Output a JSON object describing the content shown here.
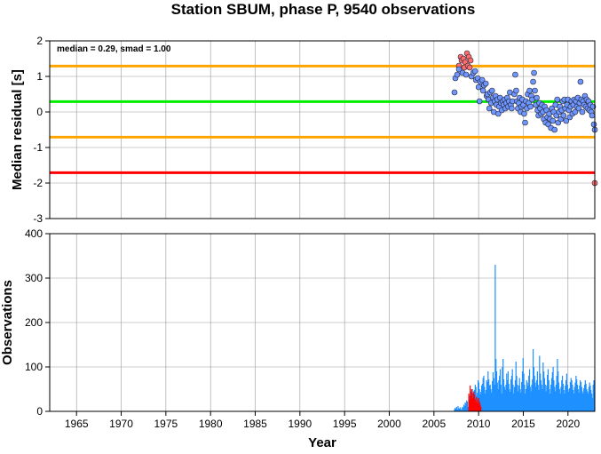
{
  "chart_data": [
    {
      "type": "scatter",
      "title": "Station SBUM, phase P, 9540 observations",
      "ylabel": "Median residual [s]",
      "annotation": "median = 0.29, smad = 1.00",
      "xlim": [
        1962,
        2023
      ],
      "ylim": [
        -3,
        2
      ],
      "yticks": [
        2,
        1,
        0,
        -1,
        -2,
        -3
      ],
      "grid": true,
      "reference_lines": [
        {
          "y": 1.29,
          "color": "#ffa500"
        },
        {
          "y": 0.29,
          "color": "#00ee00"
        },
        {
          "y": -0.71,
          "color": "#ffa500"
        },
        {
          "y": -1.71,
          "color": "#ff0000"
        }
      ],
      "series": [
        {
          "color": "#ff6e6e",
          "points": [
            [
              2007.8,
              1.3
            ],
            [
              2008.0,
              1.55
            ],
            [
              2008.1,
              1.45
            ],
            [
              2008.3,
              1.5
            ],
            [
              2008.5,
              1.4
            ],
            [
              2008.7,
              1.65
            ],
            [
              2008.9,
              1.55
            ],
            [
              2008.4,
              1.25
            ],
            [
              2008.8,
              1.3
            ],
            [
              2009.1,
              1.45
            ],
            [
              2009.0,
              1.25
            ],
            [
              2023.0,
              -2.0
            ]
          ]
        },
        {
          "color": "#6e96ff",
          "points": [
            [
              2007.3,
              0.55
            ],
            [
              2007.4,
              0.95
            ],
            [
              2007.6,
              1.05
            ],
            [
              2007.8,
              1.2
            ],
            [
              2008.2,
              1.1
            ],
            [
              2008.6,
              1.05
            ],
            [
              2009.2,
              1.0
            ],
            [
              2009.4,
              1.1
            ],
            [
              2009.6,
              1.15
            ],
            [
              2009.7,
              0.9
            ],
            [
              2009.9,
              0.95
            ],
            [
              2010.0,
              0.7
            ],
            [
              2010.1,
              0.3
            ],
            [
              2010.2,
              0.85
            ],
            [
              2010.4,
              0.9
            ],
            [
              2010.5,
              0.6
            ],
            [
              2010.6,
              0.75
            ],
            [
              2010.8,
              0.8
            ],
            [
              2010.9,
              0.45
            ],
            [
              2011.0,
              0.5
            ],
            [
              2011.1,
              0.35
            ],
            [
              2011.2,
              0.1
            ],
            [
              2011.3,
              0.55
            ],
            [
              2011.4,
              0.25
            ],
            [
              2011.5,
              0.6
            ],
            [
              2011.6,
              0.4
            ],
            [
              2011.7,
              0.0
            ],
            [
              2011.8,
              0.3
            ],
            [
              2011.9,
              0.45
            ],
            [
              2012.0,
              0.2
            ],
            [
              2012.1,
              0.35
            ],
            [
              2012.2,
              -0.05
            ],
            [
              2012.3,
              0.15
            ],
            [
              2012.4,
              0.4
            ],
            [
              2012.5,
              0.25
            ],
            [
              2012.6,
              0.05
            ],
            [
              2012.7,
              0.3
            ],
            [
              2012.8,
              0.2
            ],
            [
              2012.9,
              0.35
            ],
            [
              2013.0,
              0.1
            ],
            [
              2013.1,
              0.25
            ],
            [
              2013.2,
              0.4
            ],
            [
              2013.3,
              0.15
            ],
            [
              2013.4,
              0.3
            ],
            [
              2013.5,
              0.55
            ],
            [
              2013.6,
              0.2
            ],
            [
              2013.7,
              0.1
            ],
            [
              2013.8,
              0.3
            ],
            [
              2014.0,
              0.5
            ],
            [
              2014.1,
              1.05
            ],
            [
              2014.2,
              0.6
            ],
            [
              2014.3,
              0.3
            ],
            [
              2014.4,
              0.1
            ],
            [
              2014.5,
              0.25
            ],
            [
              2014.6,
              0.4
            ],
            [
              2014.7,
              0.0
            ],
            [
              2014.8,
              0.15
            ],
            [
              2014.9,
              0.35
            ],
            [
              2015.0,
              0.2
            ],
            [
              2015.1,
              -0.05
            ],
            [
              2015.2,
              -0.3
            ],
            [
              2015.3,
              0.3
            ],
            [
              2015.4,
              0.1
            ],
            [
              2015.5,
              0.5
            ],
            [
              2015.6,
              0.25
            ],
            [
              2015.7,
              0.6
            ],
            [
              2015.8,
              0.15
            ],
            [
              2015.9,
              0.45
            ],
            [
              2016.0,
              0.35
            ],
            [
              2016.1,
              0.85
            ],
            [
              2016.2,
              1.1
            ],
            [
              2016.3,
              0.6
            ],
            [
              2016.4,
              0.2
            ],
            [
              2016.5,
              0.4
            ],
            [
              2016.6,
              0.05
            ],
            [
              2016.7,
              -0.1
            ],
            [
              2016.8,
              0.25
            ],
            [
              2016.9,
              0.1
            ],
            [
              2017.0,
              -0.05
            ],
            [
              2017.1,
              0.2
            ],
            [
              2017.2,
              0.0
            ],
            [
              2017.3,
              -0.2
            ],
            [
              2017.4,
              0.15
            ],
            [
              2017.5,
              -0.3
            ],
            [
              2017.6,
              0.05
            ],
            [
              2017.7,
              -0.15
            ],
            [
              2017.8,
              -0.35
            ],
            [
              2017.9,
              -0.05
            ],
            [
              2018.0,
              -0.2
            ],
            [
              2018.1,
              -0.45
            ],
            [
              2018.2,
              0.1
            ],
            [
              2018.3,
              -0.25
            ],
            [
              2018.4,
              0.0
            ],
            [
              2018.5,
              -0.5
            ],
            [
              2018.6,
              0.2
            ],
            [
              2018.7,
              -0.1
            ],
            [
              2018.8,
              0.35
            ],
            [
              2018.9,
              -0.3
            ],
            [
              2019.0,
              0.0
            ],
            [
              2019.1,
              0.15
            ],
            [
              2019.2,
              -0.2
            ],
            [
              2019.3,
              0.05
            ],
            [
              2019.4,
              0.3
            ],
            [
              2019.5,
              -0.1
            ],
            [
              2019.6,
              0.35
            ],
            [
              2019.7,
              0.1
            ],
            [
              2019.8,
              -0.25
            ],
            [
              2019.9,
              0.2
            ],
            [
              2020.0,
              0.35
            ],
            [
              2020.1,
              0.05
            ],
            [
              2020.2,
              -0.15
            ],
            [
              2020.3,
              0.15
            ],
            [
              2020.4,
              0.3
            ],
            [
              2020.5,
              -0.05
            ],
            [
              2020.6,
              0.2
            ],
            [
              2020.7,
              0.35
            ],
            [
              2020.8,
              0.0
            ],
            [
              2020.9,
              0.3
            ],
            [
              2021.0,
              0.15
            ],
            [
              2021.1,
              0.4
            ],
            [
              2021.2,
              0.1
            ],
            [
              2021.3,
              0.25
            ],
            [
              2021.4,
              0.85
            ],
            [
              2021.5,
              0.35
            ],
            [
              2021.6,
              0.0
            ],
            [
              2021.7,
              0.3
            ],
            [
              2021.8,
              0.2
            ],
            [
              2021.9,
              0.45
            ],
            [
              2022.0,
              0.15
            ],
            [
              2022.1,
              0.35
            ],
            [
              2022.2,
              0.1
            ],
            [
              2022.3,
              0.3
            ],
            [
              2022.4,
              0.05
            ],
            [
              2022.5,
              0.2
            ],
            [
              2022.6,
              0.0
            ],
            [
              2022.7,
              -0.1
            ],
            [
              2022.8,
              0.15
            ],
            [
              2022.9,
              -0.35
            ],
            [
              2023.0,
              -0.5
            ]
          ]
        }
      ]
    },
    {
      "type": "bar",
      "xlabel": "Year",
      "ylabel": "Observations",
      "xlim": [
        1962,
        2023
      ],
      "ylim": [
        0,
        400
      ],
      "yticks": [
        0,
        100,
        200,
        300,
        400
      ],
      "xticks": [
        1965,
        1970,
        1975,
        1980,
        1985,
        1990,
        1995,
        2000,
        2005,
        2010,
        2015,
        2020
      ],
      "grid": true,
      "bar_start": 2007.3,
      "bar_step": 0.08,
      "series": [
        {
          "color": "#1e90ff",
          "values": [
            5,
            8,
            6,
            10,
            4,
            12,
            7,
            6,
            9,
            5,
            3,
            10,
            8,
            15,
            12,
            20,
            18,
            25,
            22,
            10,
            30,
            35,
            28,
            45,
            38,
            50,
            40,
            32,
            48,
            60,
            55,
            35,
            42,
            70,
            65,
            50,
            38,
            44,
            58,
            62,
            75,
            80,
            55,
            40,
            48,
            70,
            66,
            90,
            72,
            58,
            60,
            50,
            42,
            68,
            88,
            75,
            60,
            330,
            118,
            90,
            65,
            50,
            70,
            80,
            95,
            60,
            40,
            100,
            118,
            72,
            55,
            48,
            60,
            85,
            70,
            90,
            62,
            50,
            44,
            72,
            80,
            95,
            60,
            40,
            55,
            70,
            112,
            80,
            60,
            45,
            58,
            75,
            50,
            42,
            66,
            90,
            120,
            85,
            60,
            40,
            50,
            70,
            65,
            58,
            80,
            95,
            55,
            45,
            60,
            72,
            140,
            100,
            80,
            65,
            55,
            70,
            90,
            60,
            48,
            125,
            85,
            70,
            60,
            50,
            110,
            90,
            75,
            60,
            45,
            58,
            82,
            95,
            70,
            50,
            40,
            60,
            75,
            88,
            100,
            70,
            55,
            45,
            60,
            80,
            118,
            90,
            65,
            50,
            40,
            55,
            70,
            80,
            62,
            48,
            40,
            58,
            70,
            85,
            60,
            50,
            44,
            52,
            66,
            75,
            70,
            60,
            48,
            40,
            55,
            65,
            80,
            72,
            60,
            50,
            42,
            58,
            70,
            66,
            55,
            45,
            40,
            52,
            60,
            70,
            62,
            50,
            45,
            40,
            55,
            65,
            58,
            48,
            40,
            30,
            60,
            70,
            50,
            40,
            20
          ]
        },
        {
          "color": "#ff0000",
          "values": [
            0,
            0,
            0,
            0,
            0,
            0,
            0,
            0,
            0,
            0,
            0,
            0,
            0,
            0,
            0,
            0,
            0,
            0,
            0,
            0,
            40,
            25,
            58,
            35,
            50,
            42,
            30,
            45,
            38,
            28,
            20,
            32,
            25,
            18,
            30,
            22,
            15,
            10
          ]
        }
      ]
    }
  ]
}
